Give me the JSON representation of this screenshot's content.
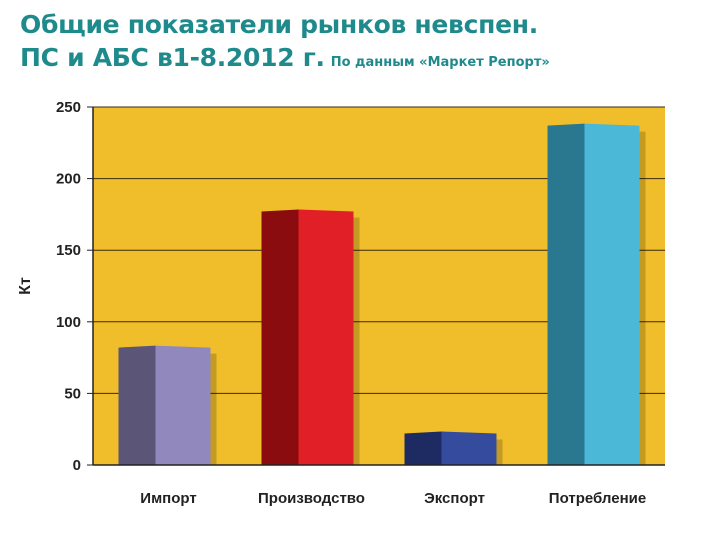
{
  "header": {
    "title_line1": "Общие показатели рынков невспен.",
    "title_line2": "ПС и АБС в1-8.2012 г.",
    "source": "По данным «Маркет Репорт»"
  },
  "colors": {
    "plot_bg": "#f0be2a",
    "grid": "#3a2a10",
    "axis": "#222222",
    "import_front": "#9189bd",
    "import_side": "#5b5578",
    "production_front": "#e02026",
    "production_side": "#8b0c0e",
    "export_front": "#354b9e",
    "export_side": "#1e2a62",
    "consumption_front": "#4cb8d8",
    "consumption_side": "#2a7890"
  },
  "chart_data": {
    "type": "bar",
    "title": "Общие показатели рынков невспен. ПС и АБС в1-8.2012 г.",
    "subtitle": "По данным «Маркет Репорт»",
    "xlabel": "",
    "ylabel": "Кт",
    "categories": [
      "Импорт",
      "Производство",
      "Экспорт",
      "Потребление"
    ],
    "values": [
      82,
      177,
      22,
      237
    ],
    "ylim": [
      0,
      250
    ],
    "yticks": [
      "0",
      "50",
      "100",
      "150",
      "200",
      "250"
    ],
    "grid": true,
    "legend": "none"
  }
}
